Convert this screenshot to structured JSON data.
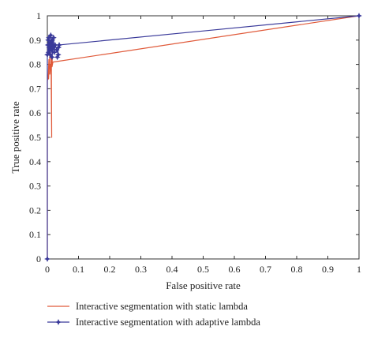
{
  "chart_data": {
    "type": "line",
    "xlabel": "False positive rate",
    "ylabel": "True positive rate",
    "xlim": [
      0,
      1
    ],
    "ylim": [
      0,
      1
    ],
    "xticks": [
      "0",
      "0.1",
      "0.2",
      "0.3",
      "0.4",
      "0.5",
      "0.6",
      "0.7",
      "0.8",
      "0.9",
      "1"
    ],
    "yticks": [
      "0",
      "0.1",
      "0.2",
      "0.3",
      "0.4",
      "0.5",
      "0.6",
      "0.7",
      "0.8",
      "0.9",
      "1"
    ],
    "grid": false,
    "legend_position": "below",
    "series": [
      {
        "name": "Interactive segmentation with static lambda",
        "color": "#e05a3a",
        "marker": "none",
        "x": [
          0,
          0.0,
          0.003,
          0.005,
          0.004,
          0.008,
          0.006,
          0.01,
          0.008,
          0.012,
          0.01,
          0.015,
          0.012,
          0.014,
          0.013,
          0.016,
          0.015,
          0.018,
          0.02,
          1.0
        ],
        "y": [
          0,
          0.73,
          0.76,
          0.82,
          0.74,
          0.84,
          0.78,
          0.8,
          0.76,
          0.82,
          0.85,
          0.81,
          0.78,
          0.5,
          0.8,
          0.83,
          0.79,
          0.81,
          0.81,
          1.0
        ]
      },
      {
        "name": "Interactive segmentation with adaptive lambda",
        "color": "#3a3a9a",
        "marker": "star",
        "x": [
          0,
          0.0,
          0.002,
          0.004,
          0.003,
          0.006,
          0.005,
          0.008,
          0.01,
          0.009,
          0.012,
          0.011,
          0.014,
          0.016,
          0.015,
          0.018,
          0.02,
          0.022,
          0.025,
          0.03,
          0.035,
          0.032,
          0.036,
          0.038,
          1.0
        ],
        "y": [
          0,
          0.84,
          0.88,
          0.85,
          0.9,
          0.87,
          0.91,
          0.86,
          0.89,
          0.84,
          0.88,
          0.92,
          0.86,
          0.9,
          0.83,
          0.87,
          0.91,
          0.85,
          0.88,
          0.86,
          0.84,
          0.83,
          0.87,
          0.88,
          1.0
        ]
      }
    ]
  }
}
